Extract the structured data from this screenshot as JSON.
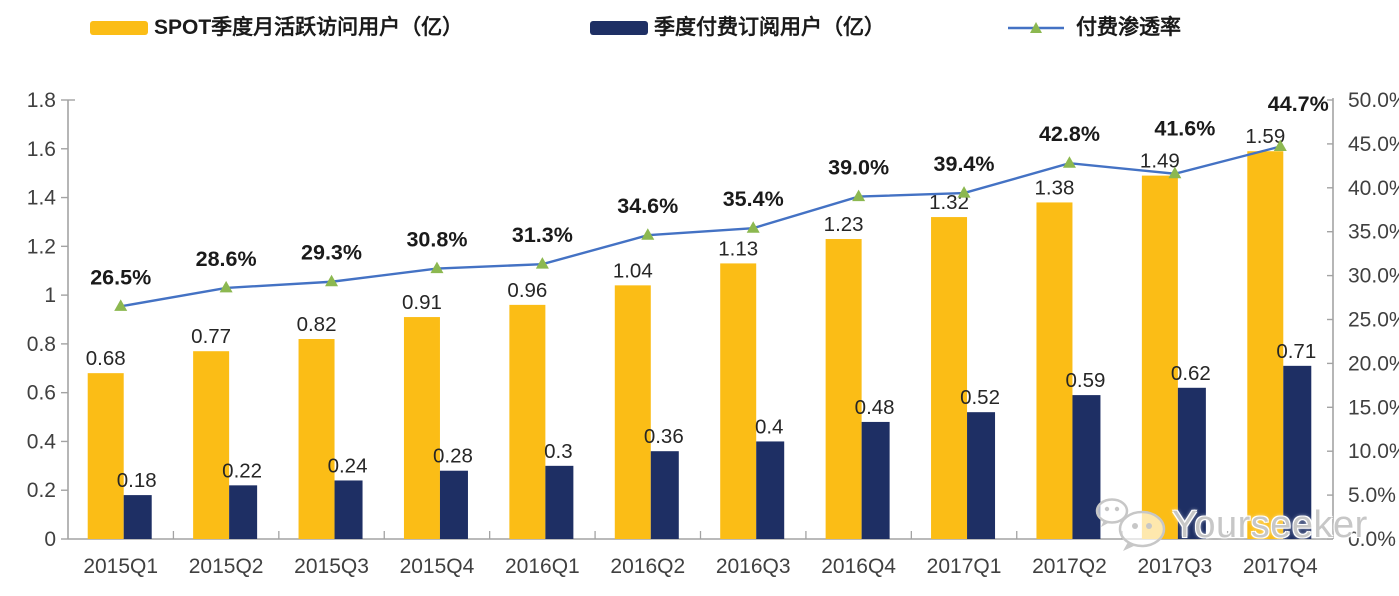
{
  "watermark": {
    "text": "Yourseeker",
    "icon": "wechat-bubbles-icon"
  },
  "colors": {
    "mau_bar": "#FBBD16",
    "subs_bar": "#1E2F64",
    "penetration_line": "#4472C4",
    "penetration_marker": "#8CB850",
    "axis": "#A3A3A3",
    "axis_label": "#404040",
    "data_label": "#262626",
    "pct_label": "#1a1a1a"
  },
  "chart_data": {
    "type": "bar+line combo",
    "title": "",
    "legend_position": "top",
    "grid": false,
    "categories": [
      "2015Q1",
      "2015Q2",
      "2015Q3",
      "2015Q4",
      "2016Q1",
      "2016Q2",
      "2016Q3",
      "2016Q4",
      "2017Q1",
      "2017Q2",
      "2017Q3",
      "2017Q4"
    ],
    "series": [
      {
        "name": "SPOT季度月活跃访问用户（亿）",
        "type": "bar",
        "axis": "left",
        "color": "#FBBD16",
        "values": [
          0.68,
          0.77,
          0.82,
          0.91,
          0.96,
          1.04,
          1.13,
          1.23,
          1.32,
          1.38,
          1.49,
          1.59
        ],
        "labels": [
          "0.68",
          "0.77",
          "0.82",
          "0.91",
          "0.96",
          "1.04",
          "1.13",
          "1.23",
          "1.32",
          "1.38",
          "1.49",
          "1.59"
        ]
      },
      {
        "name": "季度付费订阅用户（亿）",
        "type": "bar",
        "axis": "left",
        "color": "#1E2F64",
        "values": [
          0.18,
          0.22,
          0.24,
          0.28,
          0.3,
          0.36,
          0.4,
          0.48,
          0.52,
          0.59,
          0.62,
          0.71
        ],
        "labels": [
          "0.18",
          "0.22",
          "0.24",
          "0.28",
          "0.3",
          "0.36",
          "0.4",
          "0.48",
          "0.52",
          "0.59",
          "0.62",
          "0.71"
        ]
      },
      {
        "name": "付费渗透率",
        "type": "line",
        "axis": "right",
        "color": "#4472C4",
        "marker": "triangle",
        "marker_color": "#8CB850",
        "values": [
          26.5,
          28.6,
          29.3,
          30.8,
          31.3,
          34.6,
          35.4,
          39.0,
          39.4,
          42.8,
          41.6,
          44.7
        ],
        "labels": [
          "26.5%",
          "28.6%",
          "29.3%",
          "30.8%",
          "31.3%",
          "34.6%",
          "35.4%",
          "39.0%",
          "39.4%",
          "42.8%",
          "41.6%",
          "44.7%"
        ]
      }
    ],
    "left_axis": {
      "min": 0,
      "max": 1.8,
      "step": 0.2,
      "ticks": [
        "0",
        "0.2",
        "0.4",
        "0.6",
        "0.8",
        "1",
        "1.2",
        "1.4",
        "1.6",
        "1.8"
      ]
    },
    "right_axis": {
      "min": 0,
      "max": 50,
      "step": 5,
      "ticks": [
        "0.0%",
        "5.0%",
        "10.0%",
        "15.0%",
        "20.0%",
        "25.0%",
        "30.0%",
        "35.0%",
        "40.0%",
        "45.0%",
        "50.0%"
      ]
    }
  }
}
